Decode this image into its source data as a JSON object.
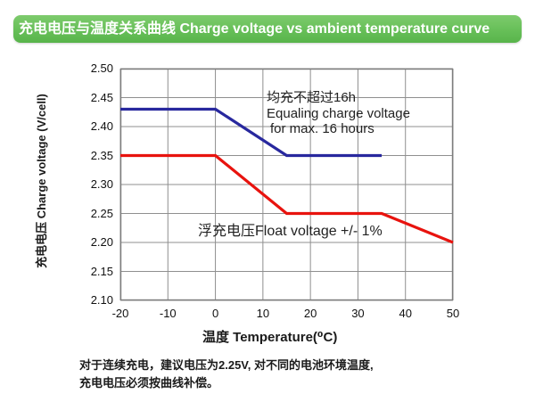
{
  "header": {
    "title": "充电电压与温度关系曲线 Charge voltage vs ambient temperature curve"
  },
  "colors": {
    "header_bg": "#67bf58",
    "header_text": "#ffffff",
    "equalize_line": "#28289e",
    "float_line": "#e8130e",
    "grid": "#8f8f8f",
    "plot_border": "#7d7d7d",
    "text": "#1a1a1a"
  },
  "chart_data": {
    "type": "line",
    "title": "充电电压与温度关系曲线 Charge voltage vs ambient temperature curve",
    "xlabel": "温度 Temperature(⁰C)",
    "ylabel": "充电电压 Charge voltage (V/cell)",
    "xlim": [
      -20,
      50
    ],
    "ylim": [
      2.1,
      2.5
    ],
    "xticks": [
      "-20",
      "-10",
      "0",
      "10",
      "20",
      "30",
      "40",
      "50"
    ],
    "yticks": [
      "2.50",
      "2.45",
      "2.40",
      "2.35",
      "2.30",
      "2.25",
      "2.20",
      "2.15",
      "2.10"
    ],
    "grid": true,
    "legend_position": "none (series labeled by in-plot annotations)",
    "series": [
      {
        "name": "均充电压 Equalizing charge voltage",
        "color": "#28289e",
        "points": [
          [
            -20,
            2.43
          ],
          [
            0,
            2.43
          ],
          [
            15,
            2.35
          ],
          [
            35,
            2.35
          ]
        ]
      },
      {
        "name": "浮充电压 Float voltage",
        "color": "#e8130e",
        "points": [
          [
            -20,
            2.35
          ],
          [
            0,
            2.35
          ],
          [
            15,
            2.25
          ],
          [
            35,
            2.25
          ],
          [
            50,
            2.2
          ]
        ]
      }
    ]
  },
  "annotations": {
    "equalize_line1": "均充不超过16h",
    "equalize_line2": "Equaling charge voltage",
    "equalize_line3": "for max. 16 hours",
    "float_label": "浮充电压Float voltage +/- 1%"
  },
  "footer": {
    "line1": "对于连续充电，建议电压为2.25V, 对不同的电池环境温度,",
    "line2": "充电电压必须按曲线补偿。"
  }
}
